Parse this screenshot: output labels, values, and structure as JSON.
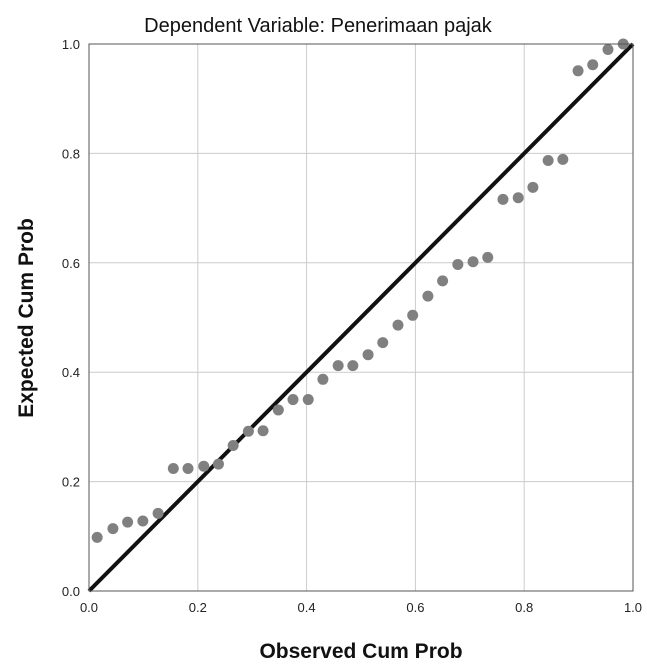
{
  "chart_data": {
    "type": "scatter",
    "title": "Dependent Variable: Penerimaan pajak",
    "xlabel": "Observed Cum Prob",
    "ylabel": "Expected Cum Prob",
    "xlim": [
      0,
      1
    ],
    "ylim": [
      0,
      1
    ],
    "x_ticks": [
      "0.0",
      "0.2",
      "0.4",
      "0.6",
      "0.8",
      "1.0"
    ],
    "y_ticks": [
      "0.0",
      "0.2",
      "0.4",
      "0.6",
      "0.8",
      "1.0"
    ],
    "grid": true,
    "reference_line": {
      "from": [
        0,
        0
      ],
      "to": [
        1,
        1
      ]
    },
    "points": [
      [
        0.015,
        0.098
      ],
      [
        0.044,
        0.114
      ],
      [
        0.071,
        0.126
      ],
      [
        0.099,
        0.128
      ],
      [
        0.127,
        0.142
      ],
      [
        0.155,
        0.224
      ],
      [
        0.182,
        0.224
      ],
      [
        0.211,
        0.228
      ],
      [
        0.238,
        0.232
      ],
      [
        0.265,
        0.266
      ],
      [
        0.293,
        0.292
      ],
      [
        0.32,
        0.293
      ],
      [
        0.348,
        0.331
      ],
      [
        0.375,
        0.35
      ],
      [
        0.403,
        0.35
      ],
      [
        0.43,
        0.387
      ],
      [
        0.458,
        0.412
      ],
      [
        0.485,
        0.412
      ],
      [
        0.513,
        0.432
      ],
      [
        0.54,
        0.454
      ],
      [
        0.568,
        0.486
      ],
      [
        0.595,
        0.504
      ],
      [
        0.623,
        0.539
      ],
      [
        0.65,
        0.567
      ],
      [
        0.678,
        0.597
      ],
      [
        0.706,
        0.602
      ],
      [
        0.733,
        0.61
      ],
      [
        0.761,
        0.716
      ],
      [
        0.789,
        0.719
      ],
      [
        0.816,
        0.738
      ],
      [
        0.844,
        0.787
      ],
      [
        0.871,
        0.789
      ],
      [
        0.899,
        0.951
      ],
      [
        0.926,
        0.962
      ],
      [
        0.954,
        0.99
      ],
      [
        0.982,
        1.0
      ]
    ],
    "colors": {
      "points": "#808080",
      "line": "#111111",
      "grid": "#cccccc",
      "frame": "#555555"
    }
  }
}
